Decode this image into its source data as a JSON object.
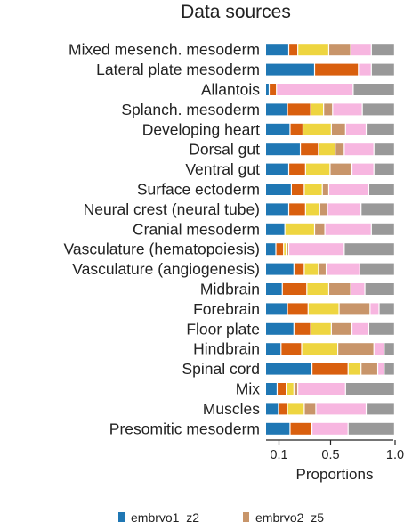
{
  "chart_data": {
    "type": "bar",
    "orientation": "horizontal",
    "stacked": true,
    "title": "Data sources",
    "xlabel": "Proportions",
    "xlim": [
      0,
      1
    ],
    "xticks": [
      0.1,
      0.5,
      1.0
    ],
    "xtick_labels": [
      "0.1",
      "0.5",
      "1.0"
    ],
    "grid": false,
    "legend_position": "bottom",
    "categories": [
      "Mixed mesench. mesoderm",
      "Lateral plate mesoderm",
      "Allantois",
      "Splanch. mesoderm",
      "Developing heart",
      "Dorsal gut",
      "Ventral gut",
      "Surface ectoderm",
      "Neural crest (neural tube)",
      "Cranial mesoderm",
      "Vasculature (hematopoiesis)",
      "Vasculature (angiogenesis)",
      "Midbrain",
      "Forebrain",
      "Floor plate",
      "Hindbrain",
      "Spinal cord",
      "Mix",
      "Muscles",
      "Presomitic mesoderm"
    ],
    "series": [
      {
        "name": "embryo1_z2",
        "color": "#1f77b4",
        "values": [
          0.18,
          0.38,
          0.03,
          0.17,
          0.19,
          0.27,
          0.18,
          0.2,
          0.18,
          0.15,
          0.08,
          0.22,
          0.13,
          0.17,
          0.22,
          0.12,
          0.36,
          0.09,
          0.1,
          0.19
        ]
      },
      {
        "name": "",
        "color": "#d95f0e",
        "values": [
          0.07,
          0.34,
          0.06,
          0.18,
          0.1,
          0.14,
          0.13,
          0.1,
          0.13,
          0.0,
          0.06,
          0.08,
          0.19,
          0.16,
          0.13,
          0.16,
          0.28,
          0.07,
          0.07,
          0.17
        ]
      },
      {
        "name": "",
        "color": "#eed540",
        "values": [
          0.24,
          0.0,
          0.0,
          0.1,
          0.22,
          0.13,
          0.19,
          0.14,
          0.11,
          0.23,
          0.02,
          0.11,
          0.17,
          0.24,
          0.16,
          0.28,
          0.1,
          0.06,
          0.13,
          0.0
        ]
      },
      {
        "name": "embryo2_z5",
        "color": "#c8956a",
        "values": [
          0.17,
          0.0,
          0.0,
          0.07,
          0.11,
          0.07,
          0.17,
          0.05,
          0.06,
          0.08,
          0.02,
          0.06,
          0.17,
          0.24,
          0.16,
          0.28,
          0.13,
          0.03,
          0.09,
          0.0
        ]
      },
      {
        "name": "",
        "color": "#f7b6e0",
        "values": [
          0.16,
          0.1,
          0.63,
          0.23,
          0.16,
          0.23,
          0.17,
          0.31,
          0.26,
          0.36,
          0.43,
          0.26,
          0.11,
          0.07,
          0.13,
          0.08,
          0.05,
          0.37,
          0.39,
          0.28
        ]
      },
      {
        "name": "",
        "color": "#999999",
        "values": [
          0.18,
          0.18,
          0.34,
          0.25,
          0.22,
          0.16,
          0.16,
          0.2,
          0.26,
          0.18,
          0.39,
          0.27,
          0.23,
          0.12,
          0.2,
          0.08,
          0.08,
          0.38,
          0.22,
          0.36
        ]
      }
    ]
  }
}
